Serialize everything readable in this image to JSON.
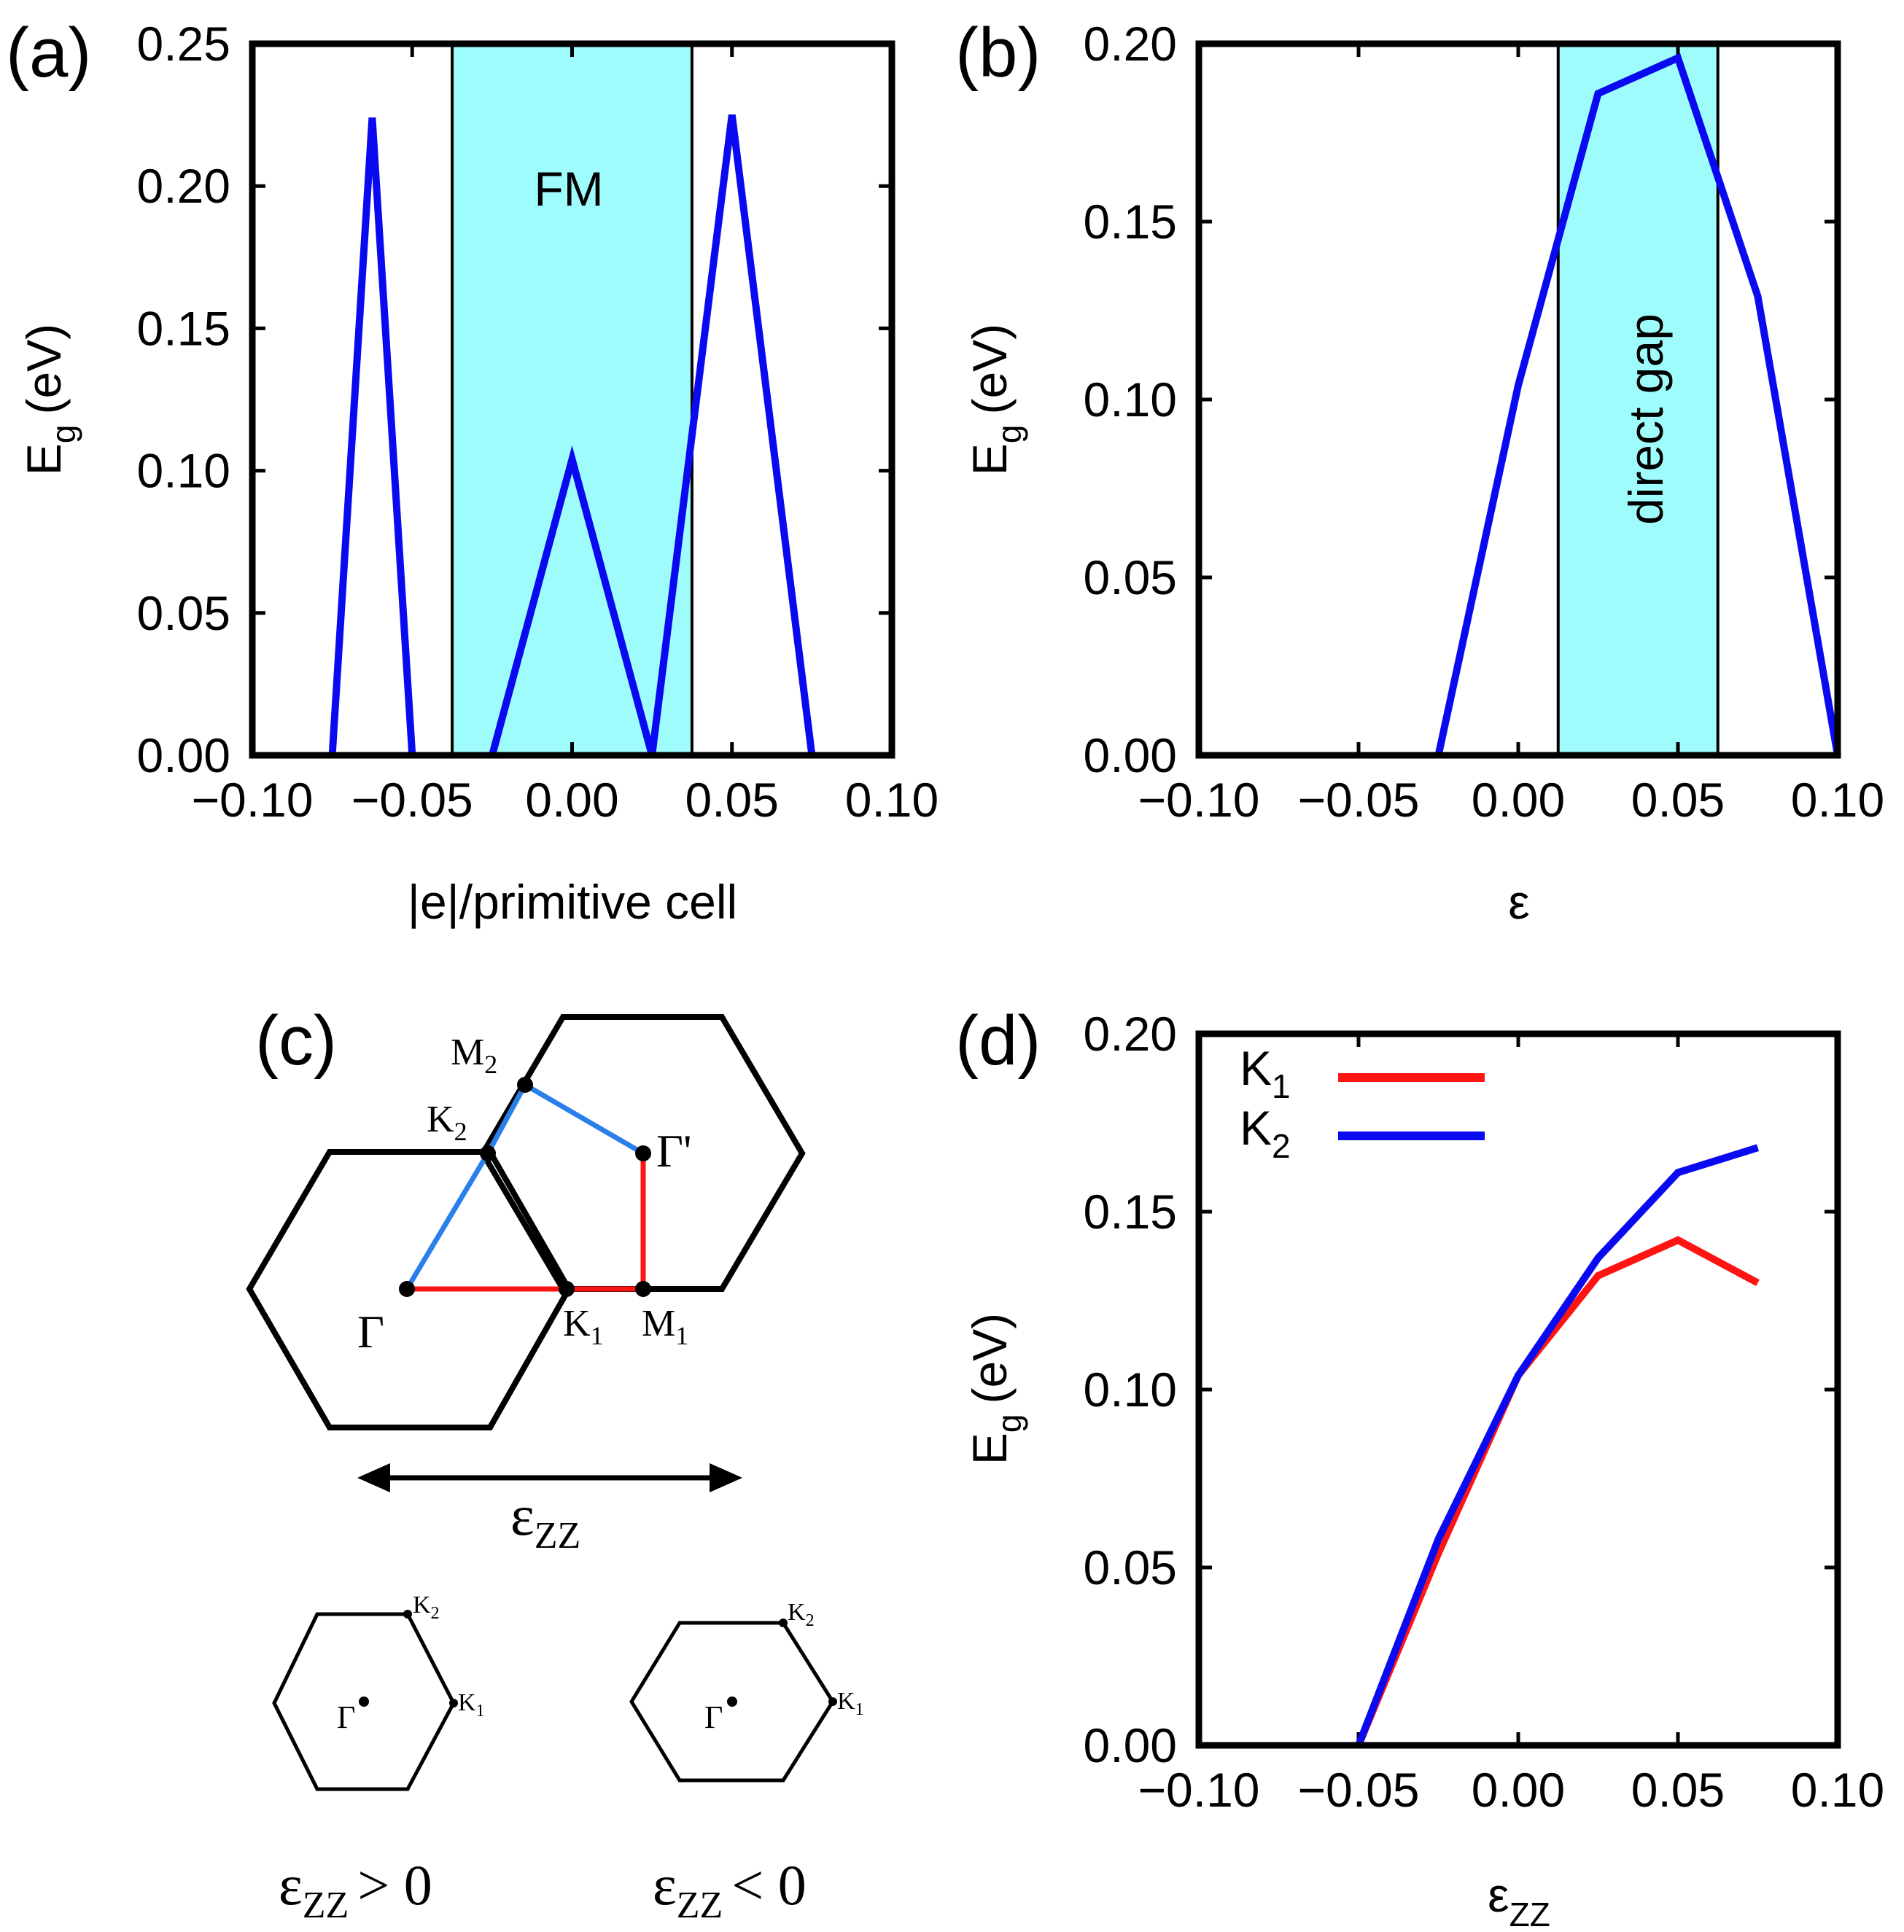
{
  "colors": {
    "shade": "#9ffcfc",
    "blue": "#0a0af0",
    "red": "#ff1414",
    "bz_blue": "#2a7fea",
    "black": "#000000"
  },
  "chart_data": [
    {
      "id": "a",
      "type": "line",
      "panel_label": "(a)",
      "xlabel": "|e|/primitive cell",
      "ylabel": "E",
      "ylabel_sub": "g",
      "ylabel_unit": "(eV)",
      "xlim": [
        -0.1,
        0.1
      ],
      "ylim": [
        0.0,
        0.25
      ],
      "xticks": [
        "-0.10",
        "-0.05",
        "0.00",
        "0.05",
        "0.10"
      ],
      "xtick_values": [
        -0.1,
        -0.05,
        0.0,
        0.05,
        0.1
      ],
      "yticks": [
        "0.00",
        "0.05",
        "0.10",
        "0.15",
        "0.20",
        "0.25"
      ],
      "ytick_values": [
        0.0,
        0.05,
        0.1,
        0.15,
        0.2,
        0.25
      ],
      "shaded_region": {
        "x": [
          -0.0375,
          0.0375
        ],
        "label": "FM"
      },
      "series": [
        {
          "name": "Eg",
          "color": "#0a0af0",
          "x": [
            -0.075,
            -0.0625,
            -0.05,
            null,
            -0.025,
            0.0,
            0.025,
            0.05,
            0.075
          ],
          "y": [
            0.0,
            0.224,
            0.0,
            null,
            0.0,
            0.104,
            0.0,
            0.225,
            0.0
          ]
        }
      ]
    },
    {
      "id": "b",
      "type": "line",
      "panel_label": "(b)",
      "xlabel": "ε",
      "ylabel": "E",
      "ylabel_sub": "g",
      "ylabel_unit": "(eV)",
      "xlim": [
        -0.1,
        0.1
      ],
      "ylim": [
        0.0,
        0.2
      ],
      "xticks": [
        "-0.10",
        "-0.05",
        "0.00",
        "0.05",
        "0.10"
      ],
      "xtick_values": [
        -0.1,
        -0.05,
        0.0,
        0.05,
        0.1
      ],
      "yticks": [
        "0.00",
        "0.05",
        "0.10",
        "0.15",
        "0.20"
      ],
      "ytick_values": [
        0.0,
        0.05,
        0.1,
        0.15,
        0.2
      ],
      "shaded_region": {
        "x": [
          0.0125,
          0.0625
        ],
        "label": "direct gap"
      },
      "series": [
        {
          "name": "Eg",
          "color": "#0a0af0",
          "x": [
            -0.025,
            0.0,
            0.025,
            0.05,
            0.075,
            0.1
          ],
          "y": [
            0.0,
            0.104,
            0.186,
            0.196,
            0.129,
            0.0
          ]
        }
      ]
    },
    {
      "id": "d",
      "type": "line",
      "panel_label": "(d)",
      "xlabel": "ε",
      "xlabel_sub": "ZZ",
      "ylabel": "E",
      "ylabel_sub": "g",
      "ylabel_unit": "(eV)",
      "xlim": [
        -0.1,
        0.1
      ],
      "ylim": [
        0.0,
        0.2
      ],
      "xticks": [
        "-0.10",
        "-0.05",
        "0.00",
        "0.05",
        "0.10"
      ],
      "xtick_values": [
        -0.1,
        -0.05,
        0.0,
        0.05,
        0.1
      ],
      "yticks": [
        "0.00",
        "0.05",
        "0.10",
        "0.15",
        "0.20"
      ],
      "ytick_values": [
        0.0,
        0.05,
        0.1,
        0.15,
        0.2
      ],
      "legend_position": "top-left",
      "series": [
        {
          "name": "K",
          "sub": "1",
          "color": "#ff1414",
          "x": [
            -0.05,
            -0.025,
            0.0,
            0.025,
            0.05,
            0.075
          ],
          "y": [
            0.0,
            0.054,
            0.104,
            0.132,
            0.142,
            0.13
          ]
        },
        {
          "name": "K",
          "sub": "2",
          "color": "#0a0af0",
          "x": [
            -0.05,
            -0.025,
            0.0,
            0.025,
            0.05,
            0.075
          ],
          "y": [
            0.0,
            0.058,
            0.104,
            0.137,
            0.161,
            0.168
          ]
        }
      ]
    }
  ],
  "diagram_c": {
    "panel_label": "(c)",
    "points": {
      "gamma": "Γ",
      "gamma_prime": "Γ'",
      "k1": "K",
      "k1_sub": "1",
      "k2": "K",
      "k2_sub": "2",
      "m1": "M",
      "m1_sub": "1",
      "m2": "M",
      "m2_sub": "2"
    },
    "strain_label": "ε",
    "strain_sub": "ZZ",
    "small_left_caption": "> 0",
    "small_right_caption": "< 0",
    "small_gamma": "Γ",
    "small_k1": "K",
    "small_k1_sub": "1",
    "small_k2": "K",
    "small_k2_sub": "2"
  }
}
